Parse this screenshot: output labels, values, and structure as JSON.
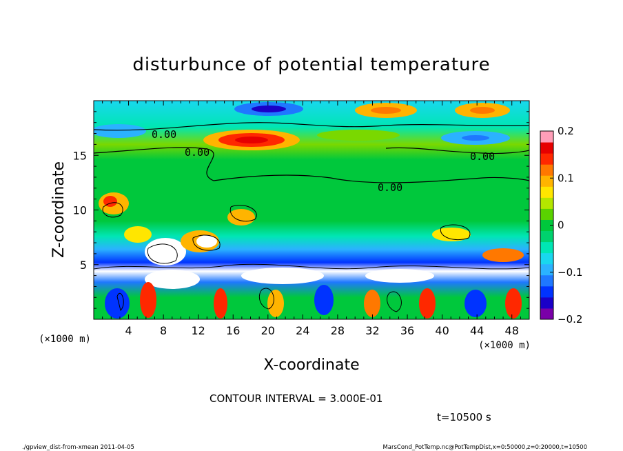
{
  "chart_data": {
    "type": "heatmap",
    "title": "disturbunce of potential temperature",
    "xlabel": "X-coordinate",
    "ylabel": "Z-coordinate",
    "x_unit": "(×1000 m)",
    "y_unit": "(×1000 m)",
    "xlim": [
      0,
      50
    ],
    "ylim": [
      0,
      20
    ],
    "x_ticks": [
      4,
      8,
      12,
      16,
      20,
      24,
      28,
      32,
      36,
      40,
      44,
      48
    ],
    "y_ticks": [
      5,
      10,
      15
    ],
    "colorbar": {
      "min": -0.2,
      "max": 0.2,
      "tick_labels": [
        "0.2",
        "0.1",
        "0",
        "−0.1",
        "−0.2"
      ],
      "tick_values": [
        0.2,
        0.1,
        0,
        -0.1,
        -0.2
      ],
      "colors": [
        "#7a00a8",
        "#1a00c8",
        "#0033ff",
        "#1f78ff",
        "#2bb2ff",
        "#19d7ee",
        "#00e6b4",
        "#00d26e",
        "#00c83c",
        "#5ad200",
        "#b4e600",
        "#ffe600",
        "#ffb400",
        "#ff7800",
        "#ff2800",
        "#e60000",
        "#ff9eb8"
      ]
    },
    "contour_interval_label": "CONTOUR INTERVAL = 3.000E-01",
    "contour_labels": [
      "0.00",
      "0.00",
      "0.00",
      "0.00"
    ],
    "time_label": "t=10500 s"
  },
  "footer": {
    "left": "./gpview_dist-from-xmean  2011-04-05",
    "right": "MarsCond_PotTemp.nc@PotTempDist,x=0:50000,z=0:20000,t=10500"
  }
}
